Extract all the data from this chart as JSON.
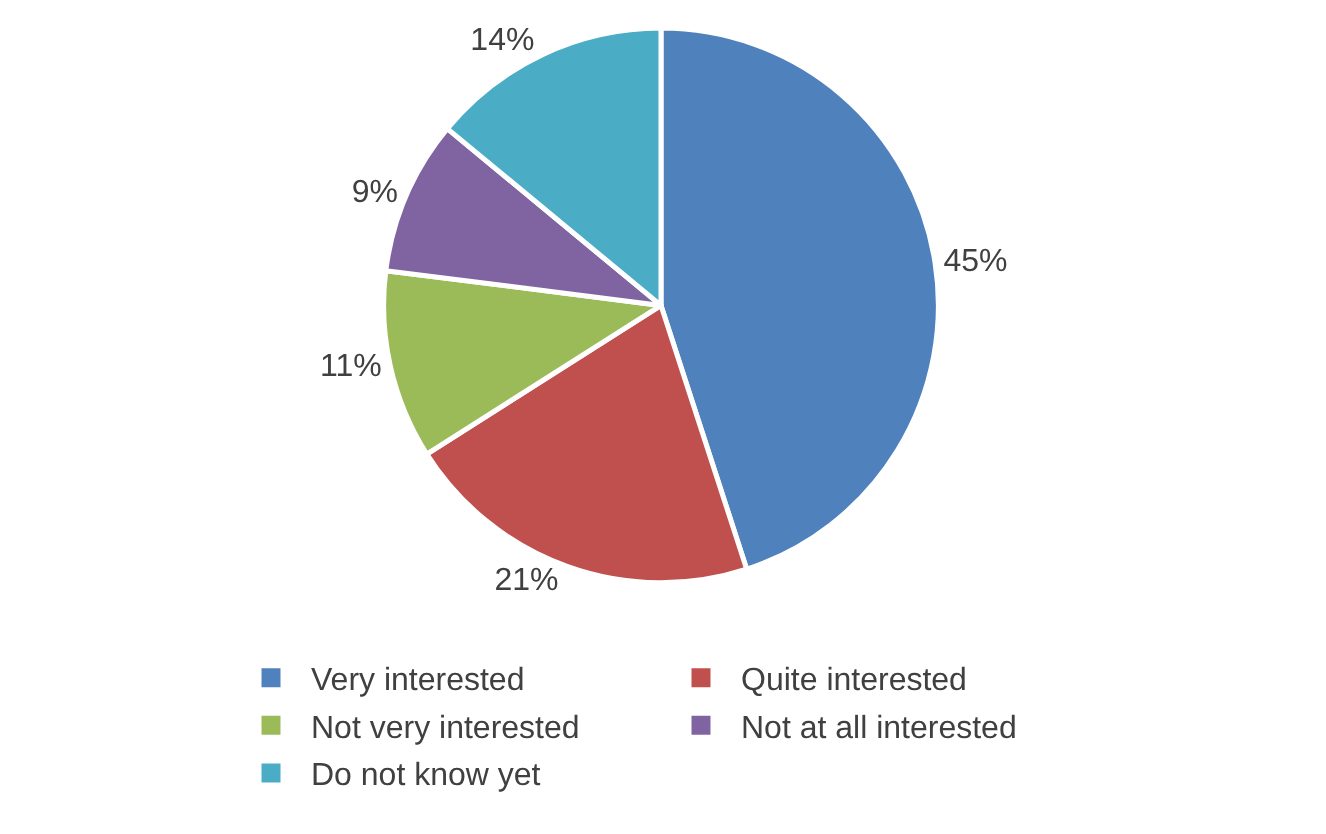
{
  "chart_data": {
    "type": "pie",
    "categories": [
      "Very interested",
      "Quite interested",
      "Not very interested",
      "Not at all interested",
      "Do not know yet"
    ],
    "values": [
      45,
      21,
      11,
      9,
      14
    ],
    "value_labels": [
      "45%",
      "21%",
      "11%",
      "9%",
      "14%"
    ],
    "colors": [
      "#4f81bd",
      "#c0504d",
      "#9bbb59",
      "#8064a2",
      "#4bacc6"
    ],
    "legend": "bottom"
  }
}
